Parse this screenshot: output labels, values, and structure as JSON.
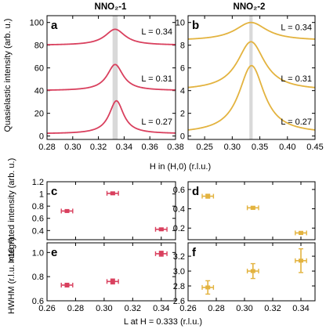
{
  "colors": {
    "nno1": "#d9405e",
    "nno2": "#e3b33f",
    "band": "#d9d9d9"
  },
  "titles": {
    "nno1": "NNO₂-1",
    "nno2": "NNO₂-2"
  },
  "axis_labels": {
    "quasielastic": "Quasielastic intensity (arb. u.)",
    "h_axis": "H in (H,0) (r.l.u.)",
    "integrated": "Integrated intensity (arb. u.)",
    "hwhm": "HWHM (r.l.u. ×10⁻²)",
    "l_axis": "L at H = 0.333 (r.l.u.)"
  },
  "chart_data": [
    {
      "panel": "a",
      "type": "line",
      "title": "NNO₂-1",
      "xlabel": "H in (H,0) (r.l.u.)",
      "ylabel": "Quasielastic intensity (arb. u.)",
      "xlim": [
        0.28,
        0.38
      ],
      "ylim": [
        -3,
        106
      ],
      "xticks": [
        "0.28",
        "0.30",
        "0.32",
        "0.34",
        "0.36",
        "0.38"
      ],
      "yticks": [
        "0",
        "20",
        "40",
        "60",
        "80",
        "100"
      ],
      "band": [
        0.331,
        0.335
      ],
      "series": [
        {
          "name": "L = 0.34",
          "center": 0.333,
          "offset": 80,
          "amplitude": 14,
          "hwhm": 0.0095
        },
        {
          "name": "L = 0.31",
          "center": 0.333,
          "offset": 40,
          "amplitude": 23,
          "hwhm": 0.0075
        },
        {
          "name": "L = 0.27",
          "center": 0.334,
          "offset": 2,
          "amplitude": 29,
          "hwhm": 0.0068
        }
      ]
    },
    {
      "panel": "b",
      "type": "line",
      "title": "NNO₂-2",
      "xlabel": "H in (H,0) (r.l.u.)",
      "ylabel": "",
      "xlim": [
        0.22,
        0.45
      ],
      "ylim": [
        -0.3,
        10.6
      ],
      "xticks": [
        "0.25",
        "0.30",
        "0.35",
        "0.40",
        "0.45"
      ],
      "yticks": [
        "0",
        "2",
        "4",
        "6",
        "8",
        "10"
      ],
      "band": [
        0.331,
        0.337
      ],
      "series": [
        {
          "name": "L = 0.34",
          "center": 0.334,
          "offset": 8.4,
          "amplitude": 1.6,
          "hwhm": 0.035
        },
        {
          "name": "L = 0.31",
          "center": 0.334,
          "offset": 4.0,
          "amplitude": 4.3,
          "hwhm": 0.03
        },
        {
          "name": "L = 0.27",
          "center": 0.335,
          "offset": 0.2,
          "amplitude": 6.0,
          "hwhm": 0.028
        }
      ]
    },
    {
      "panel": "c",
      "type": "scatter",
      "ylabel": "Integrated intensity (arb. u.)",
      "xlim": [
        0.26,
        0.35
      ],
      "ylim": [
        0.25,
        1.2
      ],
      "yticks": [
        "0.4",
        "0.6",
        "0.8",
        "1",
        "1.2"
      ],
      "points": [
        {
          "x": 0.274,
          "y": 0.72,
          "xerr": 0.004,
          "yerr": 0.02
        },
        {
          "x": 0.306,
          "y": 1.01,
          "xerr": 0.004,
          "yerr": 0.02
        },
        {
          "x": 0.34,
          "y": 0.42,
          "xerr": 0.004,
          "yerr": 0.02
        }
      ]
    },
    {
      "panel": "d",
      "type": "scatter",
      "xlim": [
        0.26,
        0.35
      ],
      "ylim": [
        0.08,
        0.68
      ],
      "yticks": [
        "0.2",
        "0.4",
        "0.6"
      ],
      "points": [
        {
          "x": 0.274,
          "y": 0.53,
          "xerr": 0.004,
          "yerr": 0.02
        },
        {
          "x": 0.306,
          "y": 0.41,
          "xerr": 0.004,
          "yerr": 0.015
        },
        {
          "x": 0.34,
          "y": 0.15,
          "xerr": 0.004,
          "yerr": 0.015
        }
      ]
    },
    {
      "panel": "e",
      "type": "scatter",
      "ylabel": "HWHM (r.l.u. ×10⁻²)",
      "xlim": [
        0.26,
        0.35
      ],
      "ylim": [
        0.6,
        1.08
      ],
      "yticks": [
        "0.6",
        "0.8",
        "1.0"
      ],
      "xlabel": "L at H = 0.333 (r.l.u.)",
      "xticks": [
        "0.26",
        "0.28",
        "0.30",
        "0.32",
        "0.34"
      ],
      "points": [
        {
          "x": 0.274,
          "y": 0.73,
          "xerr": 0.004,
          "yerr": 0.015
        },
        {
          "x": 0.306,
          "y": 0.76,
          "xerr": 0.004,
          "yerr": 0.02
        },
        {
          "x": 0.34,
          "y": 0.99,
          "xerr": 0.004,
          "yerr": 0.02
        }
      ]
    },
    {
      "panel": "f",
      "type": "scatter",
      "xlim": [
        0.26,
        0.35
      ],
      "ylim": [
        2.6,
        3.38
      ],
      "yticks": [
        "2.6",
        "2.8",
        "3.0",
        "3.2"
      ],
      "xlabel": "L at H = 0.333 (r.l.u.)",
      "xticks": [
        "0.26",
        "0.28",
        "0.30",
        "0.32",
        "0.34"
      ],
      "points": [
        {
          "x": 0.274,
          "y": 2.78,
          "xerr": 0.004,
          "yerr": 0.09
        },
        {
          "x": 0.306,
          "y": 3.0,
          "xerr": 0.004,
          "yerr": 0.1
        },
        {
          "x": 0.34,
          "y": 3.14,
          "xerr": 0.004,
          "yerr": 0.16
        }
      ]
    }
  ]
}
